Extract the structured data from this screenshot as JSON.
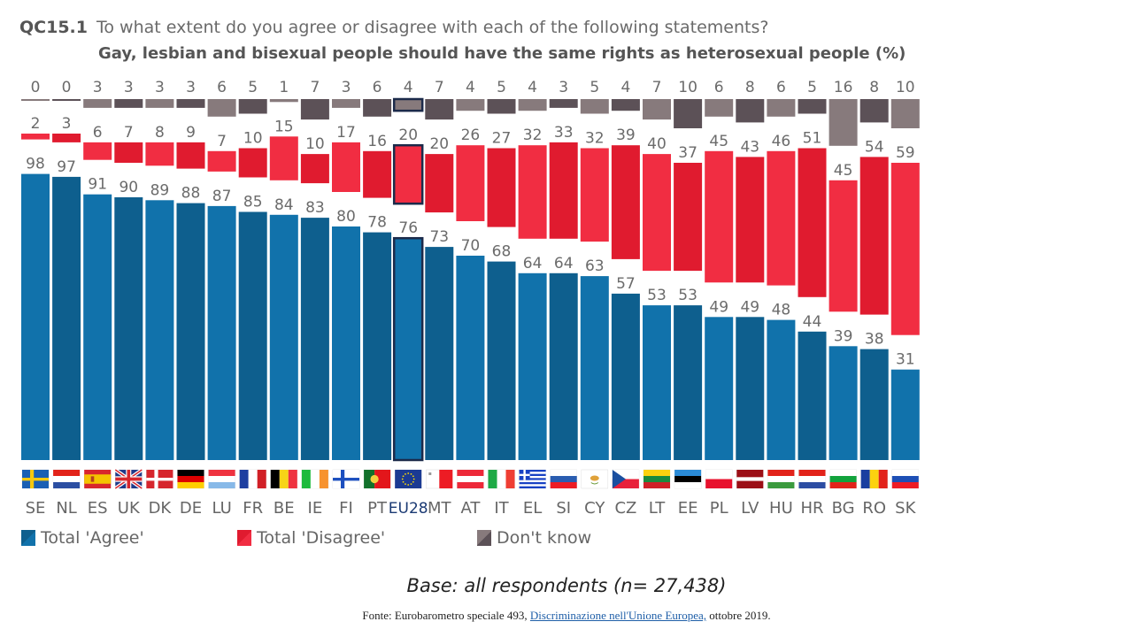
{
  "header": {
    "code": "QC15.1",
    "question": "To what extent do you agree or disagree with each of the following statements?",
    "statement": "Gay, lesbian and bisexual people should have the same rights as heterosexual people  (%)"
  },
  "chart_data": {
    "type": "bar",
    "title": "Gay, lesbian and bisexual people should have the same rights as heterosexual people (%)",
    "xlabel": "",
    "ylabel": "",
    "ylim": [
      0,
      100
    ],
    "categories": [
      "SE",
      "NL",
      "ES",
      "UK",
      "DK",
      "DE",
      "LU",
      "FR",
      "BE",
      "IE",
      "FI",
      "PT",
      "EU28",
      "MT",
      "AT",
      "IT",
      "EL",
      "SI",
      "CY",
      "CZ",
      "LT",
      "EE",
      "PL",
      "LV",
      "HU",
      "HR",
      "BG",
      "RO",
      "SK"
    ],
    "highlight": "EU28",
    "series": [
      {
        "name": "Total 'Agree'",
        "color": "#1172ab",
        "alt_color": "#0e5f8e",
        "values": [
          98,
          97,
          91,
          90,
          89,
          88,
          87,
          85,
          84,
          83,
          80,
          78,
          76,
          73,
          70,
          68,
          64,
          64,
          63,
          57,
          53,
          53,
          49,
          49,
          48,
          44,
          39,
          38,
          31
        ]
      },
      {
        "name": "Total 'Disagree'",
        "color": "#f12d42",
        "alt_color": "#e01b2f",
        "values": [
          2,
          3,
          6,
          7,
          8,
          9,
          7,
          10,
          15,
          10,
          17,
          16,
          20,
          20,
          26,
          27,
          32,
          33,
          32,
          39,
          40,
          37,
          45,
          43,
          46,
          51,
          45,
          54,
          59
        ]
      },
      {
        "name": "Don't know",
        "color": "#877a7c",
        "alt_color": "#5c5157",
        "values": [
          0,
          0,
          3,
          3,
          3,
          3,
          6,
          5,
          1,
          7,
          3,
          6,
          4,
          7,
          4,
          5,
          4,
          3,
          5,
          4,
          7,
          10,
          6,
          8,
          6,
          5,
          16,
          8,
          10
        ]
      }
    ],
    "legend_position": "bottom-left"
  },
  "flags": {
    "SE": [
      "#1a5fb4",
      "#f6c90e",
      "cross"
    ],
    "NL": [
      "#e2231a",
      "#ffffff",
      "#2b4ea2",
      "h3"
    ],
    "ES": [
      "#d8262d",
      "#f4c300",
      "#d8262d",
      "es"
    ],
    "UK": [
      "#1e3a8a",
      "#ffffff",
      "#d6262d",
      "uk"
    ],
    "DK": [
      "#d6262d",
      "#ffffff",
      "cross"
    ],
    "DE": [
      "#000000",
      "#dd0000",
      "#ffce00",
      "h3"
    ],
    "LU": [
      "#ef3340",
      "#ffffff",
      "#87b9e8",
      "h3"
    ],
    "FR": [
      "#1d3ea0",
      "#ffffff",
      "#d11f26",
      "v3"
    ],
    "BE": [
      "#000000",
      "#f7d417",
      "#ef3340",
      "v3"
    ],
    "IE": [
      "#1cba3c",
      "#ffffff",
      "#f7932f",
      "v3"
    ],
    "FI": [
      "#ffffff",
      "#1c4fbf",
      "cross"
    ],
    "PT": [
      "#12712b",
      "#e3161b",
      "pt"
    ],
    "EU28": [
      "#1b3a93",
      "#ffdd00",
      "eu"
    ],
    "MT": [
      "#ffffff",
      "#ed1c24",
      "mt"
    ],
    "AT": [
      "#ed2939",
      "#ffffff",
      "#ed2939",
      "h3"
    ],
    "IT": [
      "#1eaa46",
      "#ffffff",
      "#ef3e33",
      "v3"
    ],
    "EL": [
      "#1841c4",
      "#ffffff",
      "gr"
    ],
    "SI": [
      "#ffffff",
      "#2a5db0",
      "#ed1c24",
      "h3"
    ],
    "CY": [
      "#ffffff",
      "#e0a23a",
      "cy"
    ],
    "CZ": [
      "#ffffff",
      "#e8203a",
      "#1a4fa0",
      "cz"
    ],
    "LT": [
      "#fcd20f",
      "#1b8a3e",
      "#cf2027",
      "h3"
    ],
    "EE": [
      "#2a8ad6",
      "#000000",
      "#ffffff",
      "h3"
    ],
    "PL": [
      "#ffffff",
      "#e8112d",
      "h2"
    ],
    "LV": [
      "#9c0f16",
      "#ffffff",
      "#9c0f16",
      "lv"
    ],
    "HU": [
      "#e2231a",
      "#ffffff",
      "#3b9b3e",
      "h3"
    ],
    "HR": [
      "#e2231a",
      "#ffffff",
      "#2c4da3",
      "h3"
    ],
    "BG": [
      "#ffffff",
      "#12a33c",
      "#e2231a",
      "h3"
    ],
    "RO": [
      "#1a3fa0",
      "#fcd20f",
      "#e2231a",
      "v3"
    ],
    "SK": [
      "#ffffff",
      "#1d4fb5",
      "#ee1c25",
      "h3"
    ]
  },
  "legend": [
    {
      "label": "Total 'Agree'",
      "color": "#1172ab"
    },
    {
      "label": "Total 'Disagree'",
      "color": "#f12d42"
    },
    {
      "label": "Don't know",
      "color": "#877a7c"
    }
  ],
  "footer": {
    "base": "Base: all respondents (n= 27,438)",
    "source_prefix": "Fonte: Eurobarometro  speciale  493, ",
    "source_link": "Discriminazione  nell'Unione  Europea,",
    "source_suffix": "  ottobre 2019."
  }
}
